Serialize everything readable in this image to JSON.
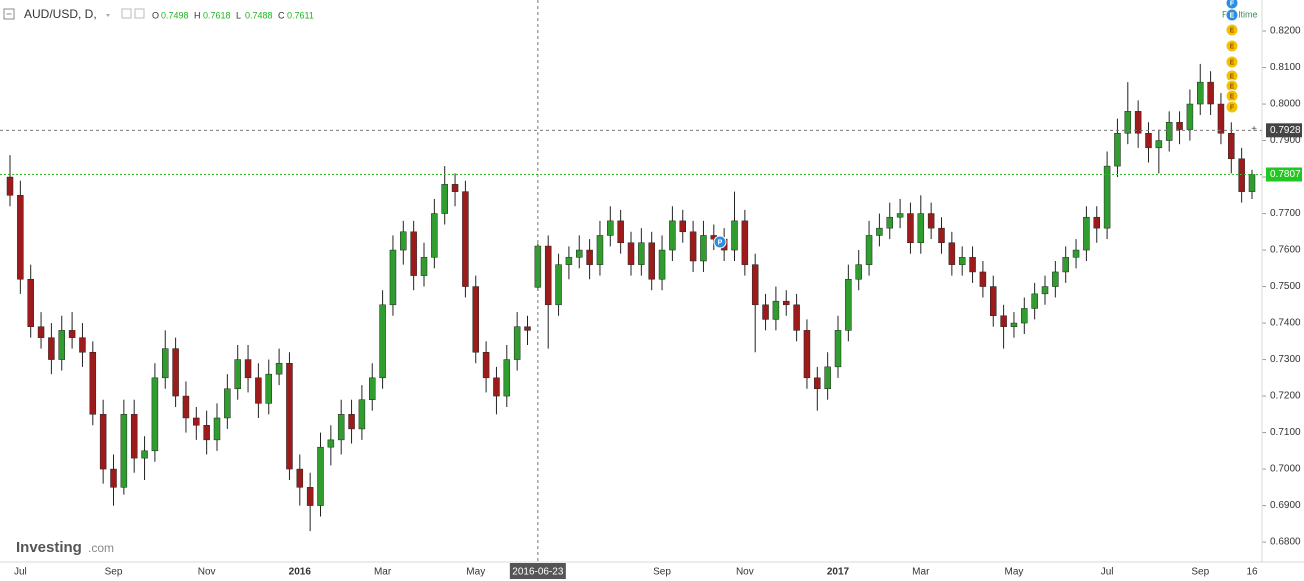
{
  "chart_data": {
    "type": "candlestick",
    "title": "AUD/USD, D,",
    "ohlc_labels": [
      "O",
      "H",
      "L",
      "C"
    ],
    "up_color": "#2f9e2f",
    "down_color": "#9e1b1b",
    "ylim": [
      0.6729,
      0.8285
    ],
    "yticks": [
      {
        "value": 0.82,
        "label": "0.8200"
      },
      {
        "value": 0.81,
        "label": "0.8100"
      },
      {
        "value": 0.8,
        "label": "0.8000"
      },
      {
        "value": 0.79,
        "label": "0.7900"
      },
      {
        "value": 0.78,
        "label": "0.7800"
      },
      {
        "value": 0.77,
        "label": "0.7700"
      },
      {
        "value": 0.76,
        "label": "0.7600"
      },
      {
        "value": 0.75,
        "label": "0.7500"
      },
      {
        "value": 0.74,
        "label": "0.7400"
      },
      {
        "value": 0.73,
        "label": "0.7300"
      },
      {
        "value": 0.72,
        "label": "0.7200"
      },
      {
        "value": 0.71,
        "label": "0.7100"
      },
      {
        "value": 0.7,
        "label": "0.7000"
      },
      {
        "value": 0.69,
        "label": "0.6900"
      },
      {
        "value": 0.68,
        "label": "0.6800"
      }
    ],
    "crosshair": {
      "date": "2016-06-23",
      "price": 0.7928
    },
    "realtime_label": "Realtime",
    "events": [
      "F",
      "E",
      "E",
      "E",
      "E",
      "E",
      "E",
      "E",
      "F",
      "P"
    ],
    "brand": [
      "Investing",
      ".com"
    ],
    "categories": [
      null,
      "Jul",
      null,
      null,
      null,
      null,
      null,
      null,
      null,
      null,
      "Sep",
      null,
      null,
      null,
      null,
      null,
      null,
      null,
      null,
      "Nov",
      null,
      null,
      null,
      null,
      null,
      null,
      null,
      null,
      "2016",
      null,
      null,
      null,
      null,
      null,
      null,
      null,
      "Mar",
      null,
      null,
      null,
      null,
      null,
      null,
      null,
      null,
      "May",
      null,
      null,
      null,
      null,
      null,
      null,
      null,
      null,
      null,
      null,
      null,
      null,
      null,
      null,
      null,
      null,
      null,
      "Sep",
      null,
      null,
      null,
      null,
      null,
      null,
      null,
      "Nov",
      null,
      null,
      null,
      null,
      null,
      null,
      null,
      null,
      "2017",
      null,
      null,
      null,
      null,
      null,
      null,
      null,
      "Mar",
      null,
      null,
      null,
      null,
      null,
      null,
      null,
      null,
      "May",
      null,
      null,
      null,
      null,
      null,
      null,
      null,
      null,
      "Jul",
      null,
      null,
      null,
      null,
      null,
      null,
      null,
      null,
      "Sep",
      null,
      null,
      null,
      null,
      "16"
    ],
    "ohlc": [
      [
        0.78,
        0.786,
        0.772,
        0.775
      ],
      [
        0.775,
        0.779,
        0.748,
        0.752
      ],
      [
        0.752,
        0.756,
        0.736,
        0.739
      ],
      [
        0.739,
        0.743,
        0.733,
        0.736
      ],
      [
        0.736,
        0.74,
        0.726,
        0.73
      ],
      [
        0.73,
        0.742,
        0.727,
        0.738
      ],
      [
        0.738,
        0.743,
        0.733,
        0.736
      ],
      [
        0.736,
        0.74,
        0.728,
        0.732
      ],
      [
        0.732,
        0.735,
        0.712,
        0.715
      ],
      [
        0.715,
        0.719,
        0.696,
        0.7
      ],
      [
        0.7,
        0.704,
        0.69,
        0.695
      ],
      [
        0.695,
        0.719,
        0.693,
        0.715
      ],
      [
        0.715,
        0.719,
        0.699,
        0.703
      ],
      [
        0.703,
        0.709,
        0.697,
        0.705
      ],
      [
        0.705,
        0.729,
        0.702,
        0.725
      ],
      [
        0.725,
        0.738,
        0.722,
        0.733
      ],
      [
        0.733,
        0.736,
        0.717,
        0.72
      ],
      [
        0.72,
        0.724,
        0.71,
        0.714
      ],
      [
        0.714,
        0.717,
        0.708,
        0.712
      ],
      [
        0.712,
        0.716,
        0.704,
        0.708
      ],
      [
        0.708,
        0.718,
        0.705,
        0.714
      ],
      [
        0.714,
        0.726,
        0.711,
        0.722
      ],
      [
        0.722,
        0.734,
        0.719,
        0.73
      ],
      [
        0.73,
        0.734,
        0.721,
        0.725
      ],
      [
        0.725,
        0.729,
        0.714,
        0.718
      ],
      [
        0.718,
        0.73,
        0.715,
        0.726
      ],
      [
        0.726,
        0.733,
        0.723,
        0.729
      ],
      [
        0.729,
        0.732,
        0.697,
        0.7
      ],
      [
        0.7,
        0.704,
        0.69,
        0.695
      ],
      [
        0.695,
        0.699,
        0.683,
        0.69
      ],
      [
        0.69,
        0.71,
        0.687,
        0.706
      ],
      [
        0.706,
        0.712,
        0.701,
        0.708
      ],
      [
        0.708,
        0.719,
        0.704,
        0.715
      ],
      [
        0.715,
        0.719,
        0.707,
        0.711
      ],
      [
        0.711,
        0.723,
        0.708,
        0.719
      ],
      [
        0.719,
        0.729,
        0.716,
        0.725
      ],
      [
        0.725,
        0.749,
        0.722,
        0.745
      ],
      [
        0.745,
        0.764,
        0.742,
        0.76
      ],
      [
        0.76,
        0.768,
        0.756,
        0.765
      ],
      [
        0.765,
        0.768,
        0.749,
        0.753
      ],
      [
        0.753,
        0.762,
        0.75,
        0.758
      ],
      [
        0.758,
        0.774,
        0.755,
        0.77
      ],
      [
        0.77,
        0.783,
        0.767,
        0.778
      ],
      [
        0.778,
        0.781,
        0.772,
        0.776
      ],
      [
        0.776,
        0.779,
        0.747,
        0.75
      ],
      [
        0.75,
        0.753,
        0.729,
        0.732
      ],
      [
        0.732,
        0.735,
        0.721,
        0.725
      ],
      [
        0.725,
        0.728,
        0.715,
        0.72
      ],
      [
        0.72,
        0.734,
        0.717,
        0.73
      ],
      [
        0.73,
        0.743,
        0.727,
        0.739
      ],
      [
        0.739,
        0.742,
        0.734,
        0.738
      ],
      [
        0.7498,
        0.7618,
        0.7488,
        0.7611
      ],
      [
        0.7611,
        0.764,
        0.733,
        0.745
      ],
      [
        0.745,
        0.759,
        0.742,
        0.756
      ],
      [
        0.756,
        0.761,
        0.752,
        0.758
      ],
      [
        0.758,
        0.764,
        0.755,
        0.76
      ],
      [
        0.76,
        0.763,
        0.752,
        0.756
      ],
      [
        0.756,
        0.768,
        0.753,
        0.764
      ],
      [
        0.764,
        0.772,
        0.761,
        0.768
      ],
      [
        0.768,
        0.771,
        0.759,
        0.762
      ],
      [
        0.762,
        0.765,
        0.753,
        0.756
      ],
      [
        0.756,
        0.766,
        0.753,
        0.762
      ],
      [
        0.762,
        0.765,
        0.749,
        0.752
      ],
      [
        0.752,
        0.764,
        0.749,
        0.76
      ],
      [
        0.76,
        0.772,
        0.757,
        0.768
      ],
      [
        0.768,
        0.771,
        0.762,
        0.765
      ],
      [
        0.765,
        0.768,
        0.754,
        0.757
      ],
      [
        0.757,
        0.768,
        0.754,
        0.764
      ],
      [
        0.764,
        0.767,
        0.76,
        0.763
      ],
      [
        0.763,
        0.766,
        0.757,
        0.76
      ],
      [
        0.76,
        0.776,
        0.757,
        0.768
      ],
      [
        0.768,
        0.771,
        0.753,
        0.756
      ],
      [
        0.756,
        0.759,
        0.732,
        0.745
      ],
      [
        0.745,
        0.748,
        0.738,
        0.741
      ],
      [
        0.741,
        0.75,
        0.738,
        0.746
      ],
      [
        0.746,
        0.749,
        0.742,
        0.745
      ],
      [
        0.745,
        0.748,
        0.735,
        0.738
      ],
      [
        0.738,
        0.741,
        0.722,
        0.725
      ],
      [
        0.725,
        0.728,
        0.716,
        0.722
      ],
      [
        0.722,
        0.732,
        0.719,
        0.728
      ],
      [
        0.728,
        0.742,
        0.725,
        0.738
      ],
      [
        0.738,
        0.756,
        0.735,
        0.752
      ],
      [
        0.752,
        0.76,
        0.749,
        0.756
      ],
      [
        0.756,
        0.768,
        0.753,
        0.764
      ],
      [
        0.764,
        0.77,
        0.761,
        0.766
      ],
      [
        0.766,
        0.773,
        0.763,
        0.769
      ],
      [
        0.769,
        0.774,
        0.766,
        0.77
      ],
      [
        0.77,
        0.773,
        0.759,
        0.762
      ],
      [
        0.762,
        0.775,
        0.759,
        0.77
      ],
      [
        0.77,
        0.773,
        0.763,
        0.766
      ],
      [
        0.766,
        0.769,
        0.759,
        0.762
      ],
      [
        0.762,
        0.765,
        0.753,
        0.756
      ],
      [
        0.756,
        0.761,
        0.753,
        0.758
      ],
      [
        0.758,
        0.761,
        0.751,
        0.754
      ],
      [
        0.754,
        0.757,
        0.747,
        0.75
      ],
      [
        0.75,
        0.753,
        0.739,
        0.742
      ],
      [
        0.742,
        0.745,
        0.733,
        0.739
      ],
      [
        0.739,
        0.743,
        0.736,
        0.74
      ],
      [
        0.74,
        0.747,
        0.737,
        0.744
      ],
      [
        0.744,
        0.751,
        0.741,
        0.748
      ],
      [
        0.748,
        0.753,
        0.745,
        0.75
      ],
      [
        0.75,
        0.757,
        0.747,
        0.754
      ],
      [
        0.754,
        0.761,
        0.751,
        0.758
      ],
      [
        0.758,
        0.763,
        0.755,
        0.76
      ],
      [
        0.76,
        0.772,
        0.757,
        0.769
      ],
      [
        0.769,
        0.772,
        0.762,
        0.766
      ],
      [
        0.766,
        0.787,
        0.763,
        0.783
      ],
      [
        0.783,
        0.796,
        0.78,
        0.792
      ],
      [
        0.792,
        0.806,
        0.789,
        0.798
      ],
      [
        0.798,
        0.801,
        0.788,
        0.792
      ],
      [
        0.792,
        0.795,
        0.784,
        0.788
      ],
      [
        0.788,
        0.793,
        0.781,
        0.79
      ],
      [
        0.79,
        0.798,
        0.787,
        0.795
      ],
      [
        0.795,
        0.798,
        0.789,
        0.793
      ],
      [
        0.793,
        0.804,
        0.79,
        0.8
      ],
      [
        0.8,
        0.811,
        0.797,
        0.806
      ],
      [
        0.806,
        0.809,
        0.797,
        0.8
      ],
      [
        0.8,
        0.803,
        0.789,
        0.792
      ],
      [
        0.792,
        0.795,
        0.781,
        0.785
      ],
      [
        0.785,
        0.788,
        0.773,
        0.776
      ],
      [
        0.776,
        0.782,
        0.774,
        0.7807
      ]
    ],
    "crosshair_index": 51
  }
}
